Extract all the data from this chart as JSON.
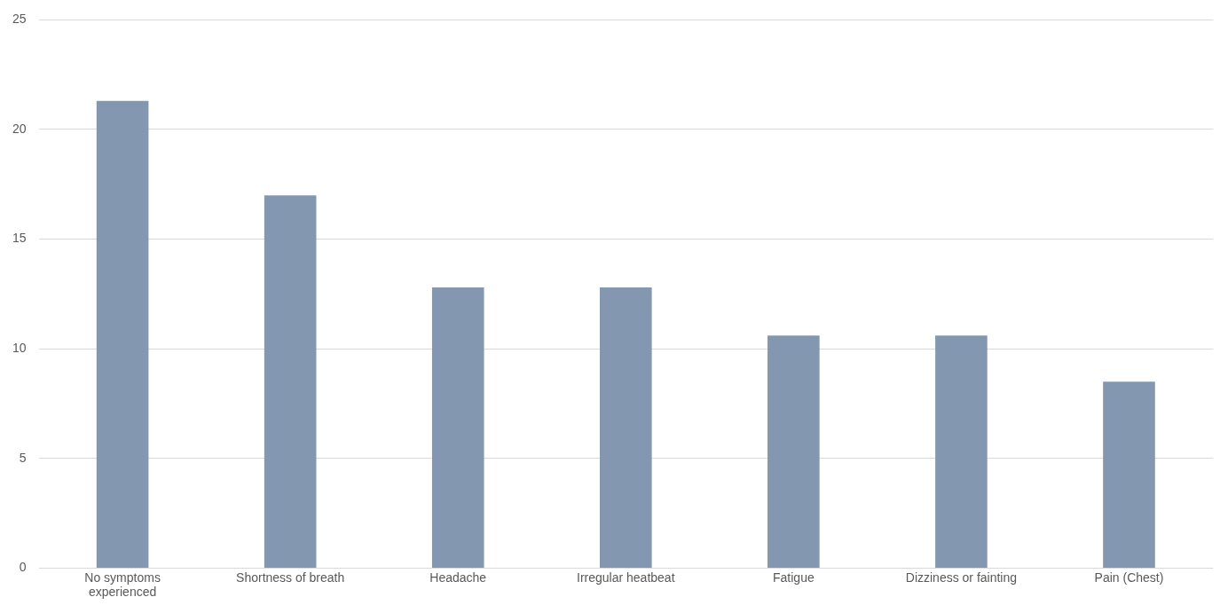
{
  "chart_data": {
    "type": "bar",
    "categories": [
      "No symptoms experienced",
      "Shortness of breath",
      "Headache",
      "Irregular heatbeat",
      "Fatigue",
      "Dizziness or fainting",
      "Pain (Chest)"
    ],
    "values": [
      21.3,
      17.0,
      12.8,
      12.8,
      10.6,
      10.6,
      8.5
    ],
    "color": "#8497b0",
    "ylim": [
      0,
      25
    ],
    "yticks": [
      0,
      5,
      10,
      15,
      20,
      25
    ],
    "grid": "y",
    "legend": false
  }
}
